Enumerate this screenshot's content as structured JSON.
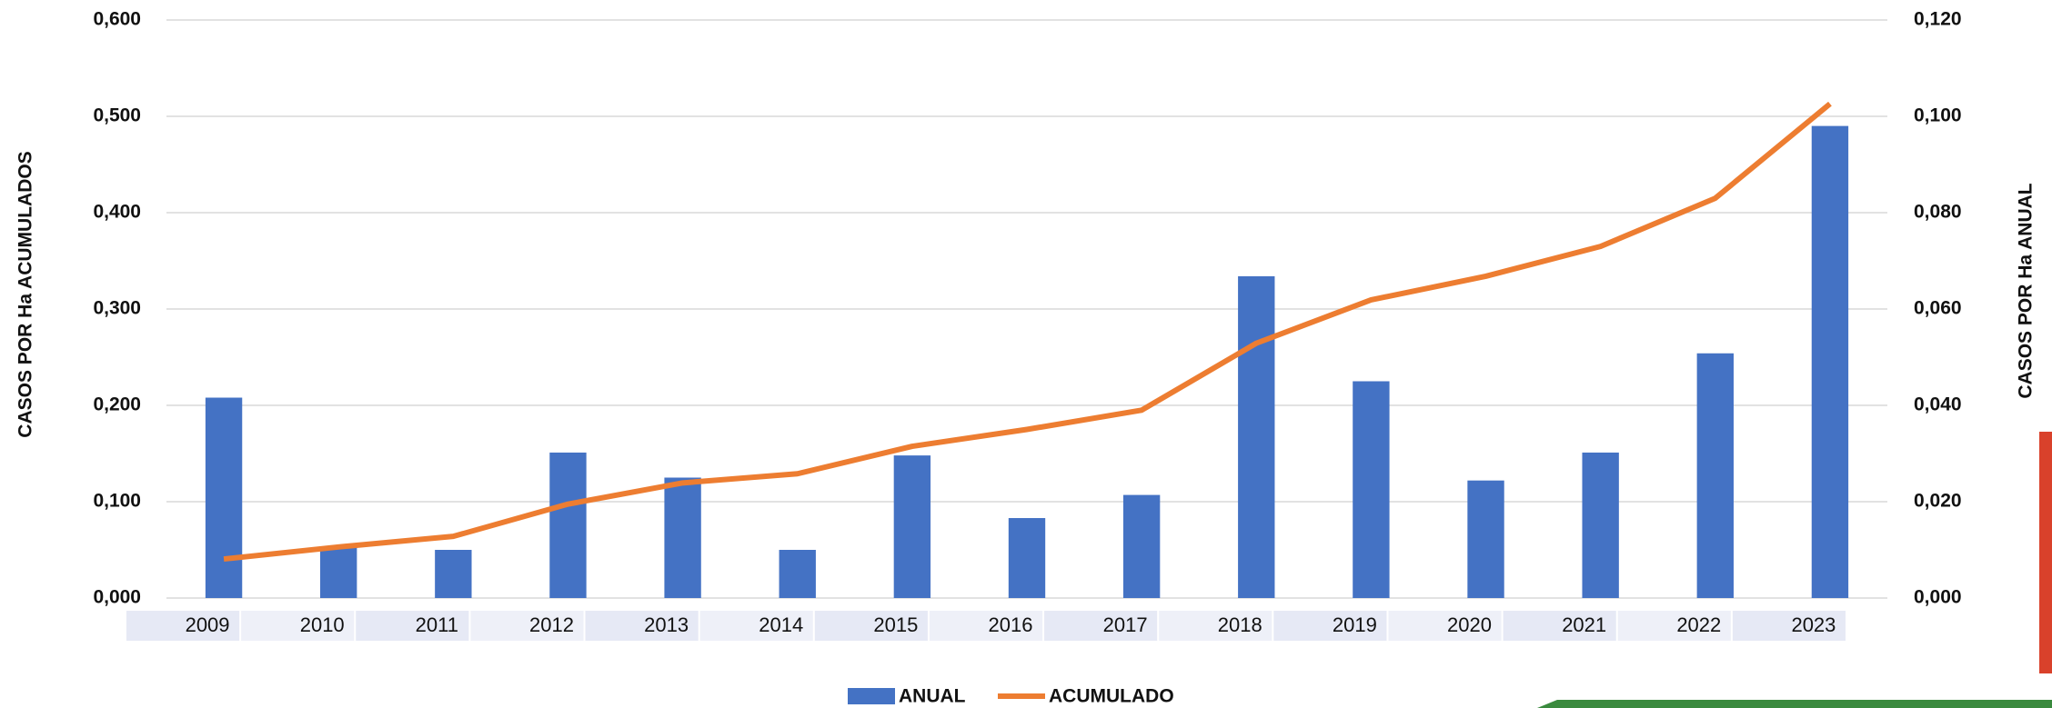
{
  "chart_data": {
    "type": "bar",
    "categories": [
      "2009",
      "2010",
      "2011",
      "2012",
      "2013",
      "2014",
      "2015",
      "2016",
      "2017",
      "2018",
      "2019",
      "2020",
      "2021",
      "2022",
      "2023"
    ],
    "series": [
      {
        "name": "ANUAL",
        "color": "#4472c4",
        "values": [
          0.208,
          0.053,
          0.05,
          0.151,
          0.125,
          0.05,
          0.148,
          0.083,
          0.107,
          0.334,
          0.225,
          0.122,
          0.151,
          0.254,
          0.49
        ]
      },
      {
        "name": "ACUMULADO",
        "color": "#ed7d31",
        "axis": "y2",
        "values": [
          0.0081,
          0.0106,
          0.0128,
          0.0195,
          0.0239,
          0.0258,
          0.0315,
          0.035,
          0.039,
          0.0529,
          0.0619,
          0.0668,
          0.073,
          0.083,
          0.1026
        ]
      }
    ],
    "y_label": "CASOS POR Ha  ACUMULADOS",
    "y2_label": "CASOS POR Ha ANUAL",
    "ylim": [
      0,
      0.6
    ],
    "yticks": [
      {
        "value": 0,
        "label": "0,000"
      },
      {
        "value": 0.1,
        "label": "0,100"
      },
      {
        "value": 0.2,
        "label": "0,200"
      },
      {
        "value": 0.3,
        "label": "0,300"
      },
      {
        "value": 0.4,
        "label": "0,400"
      },
      {
        "value": 0.5,
        "label": "0,500"
      },
      {
        "value": 0.6,
        "label": "0,600"
      }
    ],
    "y2lim": [
      0,
      0.12
    ],
    "y2ticks": [
      {
        "value": 0,
        "label": "0,000"
      },
      {
        "value": 0.02,
        "label": "0,020"
      },
      {
        "value": 0.04,
        "label": "0,040"
      },
      {
        "value": 0.06,
        "label": "0,060"
      },
      {
        "value": 0.08,
        "label": "0,080"
      },
      {
        "value": 0.1,
        "label": "0,100"
      },
      {
        "value": 0.12,
        "label": "0,120"
      }
    ],
    "grid": true,
    "legend": "bottom"
  }
}
